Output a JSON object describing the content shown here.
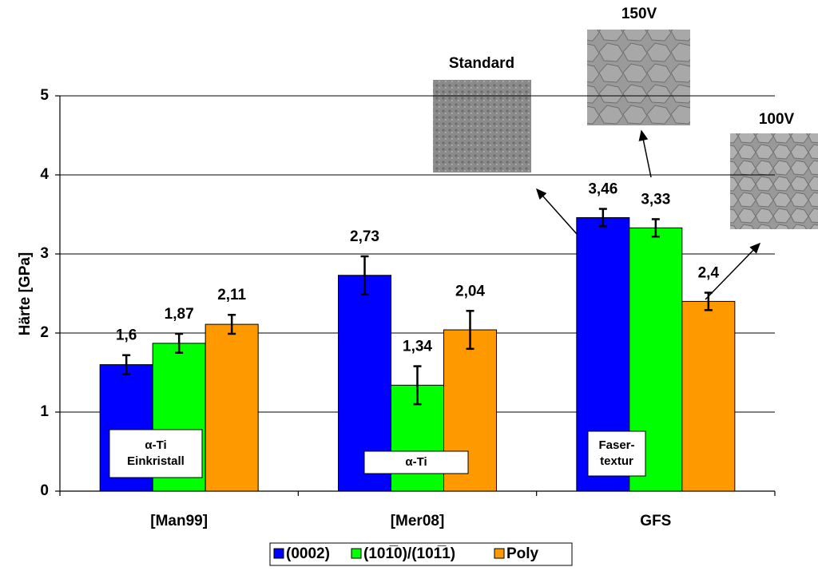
{
  "chart_data": {
    "type": "bar",
    "y_label": "Härte [GPa]",
    "categories": [
      "[Man99]",
      "[Mer08]",
      "GFS"
    ],
    "series": [
      {
        "name": "(0002)",
        "color": "#0000ff",
        "values": [
          1.6,
          2.73,
          3.46
        ],
        "value_labels": [
          "1,6",
          "2,73",
          "3,46"
        ],
        "errors": [
          0.12,
          0.24,
          0.11
        ]
      },
      {
        "name": "(101̅0)/(101̅1)",
        "color": "#00ff00",
        "values": [
          1.87,
          1.34,
          3.33
        ],
        "value_labels": [
          "1,87",
          "1,34",
          "3,33"
        ],
        "errors": [
          0.12,
          0.24,
          0.11
        ]
      },
      {
        "name": "Poly",
        "color": "#ff9900",
        "values": [
          2.11,
          2.04,
          2.4
        ],
        "value_labels": [
          "2,11",
          "2,04",
          "2,4"
        ],
        "errors": [
          0.12,
          0.24,
          0.11
        ]
      }
    ],
    "ylim": [
      0,
      5
    ],
    "yticks": [
      0,
      1,
      2,
      3,
      4,
      5
    ],
    "grid": true,
    "annotations": [
      {
        "lines": [
          "α-Ti",
          "Einkristall"
        ]
      },
      {
        "lines": [
          "α-Ti"
        ]
      },
      {
        "lines": [
          "Faser-",
          "textur"
        ]
      }
    ],
    "insets": [
      {
        "label": "Standard"
      },
      {
        "label": "150V"
      },
      {
        "label": "100V"
      }
    ]
  }
}
